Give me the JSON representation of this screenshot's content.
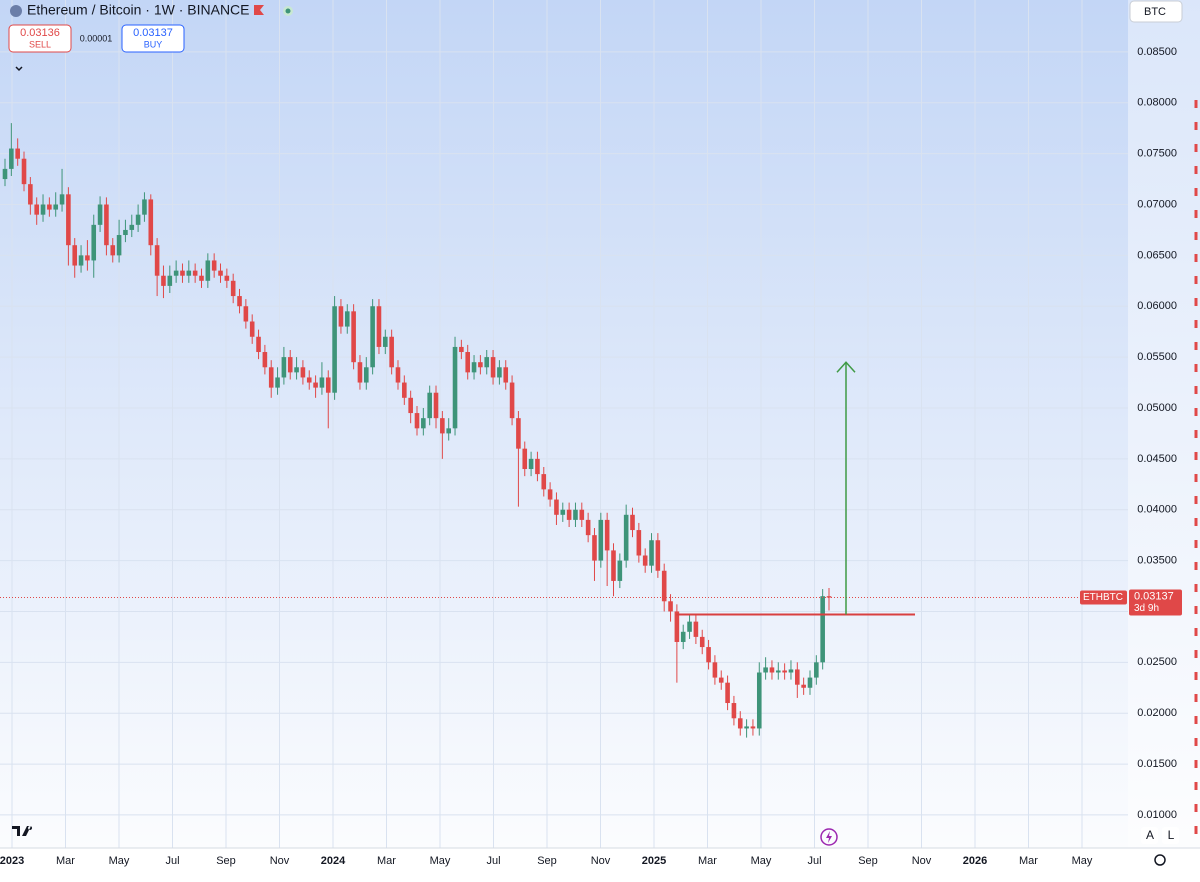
{
  "toolbar": {
    "title": "Ethereum / Bitcoin · 1W · BINANCE",
    "sell": {
      "price": "0.03136",
      "label": "SELL"
    },
    "spread": "0.00001",
    "buy": {
      "price": "0.03137",
      "label": "BUY"
    },
    "currency": "BTC",
    "scale_buttons": [
      "A",
      "L"
    ],
    "countdown": "3d 9h",
    "symbol": "ETHBTC"
  },
  "chart_data": {
    "type": "candlestick",
    "up_color": "#3e9479",
    "down_color": "#e04848",
    "ylim": [
      0.00675,
      0.0901
    ],
    "yticks": [
      {
        "value": 0.01,
        "label": "0.01000"
      },
      {
        "value": 0.015,
        "label": "0.01500"
      },
      {
        "value": 0.02,
        "label": "0.02000"
      },
      {
        "value": 0.025,
        "label": "0.02500"
      },
      {
        "value": 0.03,
        "label": "0.03000"
      },
      {
        "value": 0.035,
        "label": "0.03500"
      },
      {
        "value": 0.04,
        "label": "0.04000"
      },
      {
        "value": 0.045,
        "label": "0.04500"
      },
      {
        "value": 0.05,
        "label": "0.05000"
      },
      {
        "value": 0.055,
        "label": "0.05500"
      },
      {
        "value": 0.06,
        "label": "0.06000"
      },
      {
        "value": 0.065,
        "label": "0.06500"
      },
      {
        "value": 0.07,
        "label": "0.07000"
      },
      {
        "value": 0.075,
        "label": "0.07500"
      },
      {
        "value": 0.08,
        "label": "0.08000"
      },
      {
        "value": 0.085,
        "label": "0.08500"
      }
    ],
    "xticks": [
      {
        "value": "2023-01",
        "label": "2023"
      },
      {
        "value": "2023-03",
        "label": "Mar"
      },
      {
        "value": "2023-05",
        "label": "May"
      },
      {
        "value": "2023-07",
        "label": "Jul"
      },
      {
        "value": "2023-09",
        "label": "Sep"
      },
      {
        "value": "2023-11",
        "label": "Nov"
      },
      {
        "value": "2024-01",
        "label": "2024"
      },
      {
        "value": "2024-03",
        "label": "Mar"
      },
      {
        "value": "2024-05",
        "label": "May"
      },
      {
        "value": "2024-07",
        "label": "Jul"
      },
      {
        "value": "2024-09",
        "label": "Sep"
      },
      {
        "value": "2024-11",
        "label": "Nov"
      },
      {
        "value": "2025-01",
        "label": "2025"
      },
      {
        "value": "2025-03",
        "label": "Mar"
      },
      {
        "value": "2025-05",
        "label": "May"
      },
      {
        "value": "2025-07",
        "label": "Jul"
      },
      {
        "value": "2025-09",
        "label": "Sep"
      },
      {
        "value": "2025-11",
        "label": "Nov"
      },
      {
        "value": "2026-01",
        "label": "2026"
      },
      {
        "value": "2026-03",
        "label": "Mar"
      },
      {
        "value": "2026-05",
        "label": "May"
      }
    ],
    "open": [
      0.0725,
      0.0735,
      0.0755,
      0.0745,
      0.072,
      0.07,
      0.069,
      0.07,
      0.0695,
      0.07,
      0.071,
      0.066,
      0.064,
      0.065,
      0.0645,
      0.068,
      0.07,
      0.066,
      0.065,
      0.067,
      0.0675,
      0.068,
      0.069,
      0.0705,
      0.066,
      0.063,
      0.062,
      0.063,
      0.0635,
      0.063,
      0.0635,
      0.063,
      0.0625,
      0.0645,
      0.0635,
      0.063,
      0.0625,
      0.061,
      0.06,
      0.0585,
      0.057,
      0.0555,
      0.054,
      0.052,
      0.053,
      0.055,
      0.0535,
      0.054,
      0.053,
      0.0525,
      0.052,
      0.053,
      0.0515,
      0.06,
      0.058,
      0.0595,
      0.0545,
      0.0525,
      0.054,
      0.06,
      0.056,
      0.057,
      0.054,
      0.0525,
      0.051,
      0.0495,
      0.048,
      0.049,
      0.0515,
      0.049,
      0.0475,
      0.048,
      0.056,
      0.0555,
      0.0535,
      0.0545,
      0.054,
      0.055,
      0.053,
      0.054,
      0.0525,
      0.049,
      0.046,
      0.044,
      0.045,
      0.0435,
      0.042,
      0.041,
      0.0395,
      0.04,
      0.039,
      0.04,
      0.039,
      0.0375,
      0.035,
      0.039,
      0.036,
      0.033,
      0.035,
      0.0395,
      0.038,
      0.0355,
      0.0345,
      0.037,
      0.034,
      0.031,
      0.03,
      0.027,
      0.028,
      0.029,
      0.0275,
      0.0265,
      0.025,
      0.0235,
      0.023,
      0.021,
      0.0195,
      0.0185,
      0.0187,
      0.0185,
      0.024,
      0.0245,
      0.024,
      0.0242,
      0.024,
      0.0243,
      0.0228,
      0.0225,
      0.0235,
      0.025,
      0.0315
    ],
    "high": [
      0.0745,
      0.078,
      0.0765,
      0.0752,
      0.0727,
      0.0707,
      0.071,
      0.0707,
      0.0712,
      0.0735,
      0.0717,
      0.0667,
      0.066,
      0.0665,
      0.069,
      0.0708,
      0.0707,
      0.0667,
      0.0685,
      0.0685,
      0.069,
      0.07,
      0.0712,
      0.071,
      0.0667,
      0.064,
      0.064,
      0.0645,
      0.0642,
      0.0645,
      0.0642,
      0.0637,
      0.0652,
      0.0652,
      0.0642,
      0.0637,
      0.0632,
      0.0617,
      0.0607,
      0.0592,
      0.0577,
      0.0562,
      0.0547,
      0.054,
      0.056,
      0.0557,
      0.055,
      0.0547,
      0.0537,
      0.0532,
      0.0545,
      0.0537,
      0.061,
      0.0607,
      0.0602,
      0.0602,
      0.0552,
      0.055,
      0.0607,
      0.0607,
      0.0577,
      0.0577,
      0.0547,
      0.0532,
      0.0517,
      0.0502,
      0.05,
      0.0522,
      0.0522,
      0.0497,
      0.049,
      0.057,
      0.0567,
      0.0562,
      0.0552,
      0.0552,
      0.0557,
      0.0557,
      0.0547,
      0.0547,
      0.0532,
      0.0497,
      0.0467,
      0.0457,
      0.0457,
      0.0442,
      0.0427,
      0.0417,
      0.0407,
      0.0407,
      0.0407,
      0.0407,
      0.0397,
      0.0382,
      0.0397,
      0.0397,
      0.0367,
      0.0357,
      0.0405,
      0.0402,
      0.0387,
      0.0362,
      0.0377,
      0.0377,
      0.0347,
      0.0317,
      0.0307,
      0.0287,
      0.0297,
      0.0297,
      0.0282,
      0.0272,
      0.0257,
      0.0242,
      0.0237,
      0.0217,
      0.0202,
      0.0194,
      0.0194,
      0.025,
      0.0255,
      0.0252,
      0.025,
      0.0249,
      0.0252,
      0.025,
      0.0235,
      0.0242,
      0.0257,
      0.0322,
      0.0323
    ],
    "low": [
      0.0718,
      0.0728,
      0.0738,
      0.0713,
      0.069,
      0.068,
      0.0683,
      0.0688,
      0.0688,
      0.0693,
      0.064,
      0.0628,
      0.0633,
      0.0635,
      0.0628,
      0.0673,
      0.065,
      0.0643,
      0.0643,
      0.0663,
      0.0668,
      0.0673,
      0.0683,
      0.065,
      0.061,
      0.0608,
      0.0613,
      0.0623,
      0.0623,
      0.0623,
      0.0623,
      0.0618,
      0.0618,
      0.0628,
      0.0623,
      0.0618,
      0.0603,
      0.0593,
      0.0578,
      0.0563,
      0.0548,
      0.0533,
      0.051,
      0.0513,
      0.0523,
      0.0528,
      0.0528,
      0.0523,
      0.0518,
      0.051,
      0.0513,
      0.048,
      0.0508,
      0.0573,
      0.0573,
      0.0538,
      0.0518,
      0.0518,
      0.0533,
      0.0553,
      0.0553,
      0.0533,
      0.0518,
      0.0503,
      0.0485,
      0.0473,
      0.0473,
      0.0483,
      0.048,
      0.045,
      0.0468,
      0.0473,
      0.0548,
      0.0528,
      0.0528,
      0.0533,
      0.0533,
      0.0523,
      0.0523,
      0.0518,
      0.0483,
      0.0403,
      0.0433,
      0.0433,
      0.0428,
      0.0413,
      0.0403,
      0.0385,
      0.0388,
      0.0383,
      0.0383,
      0.0383,
      0.0368,
      0.033,
      0.0343,
      0.0325,
      0.0315,
      0.0323,
      0.0343,
      0.0373,
      0.0348,
      0.0338,
      0.0338,
      0.0333,
      0.03,
      0.029,
      0.023,
      0.0263,
      0.0273,
      0.0268,
      0.0258,
      0.0243,
      0.0228,
      0.0223,
      0.0203,
      0.0188,
      0.0178,
      0.0176,
      0.0178,
      0.0178,
      0.0233,
      0.0233,
      0.0233,
      0.0233,
      0.0233,
      0.0215,
      0.0218,
      0.0218,
      0.0228,
      0.0243,
      0.0301
    ],
    "close": [
      0.0735,
      0.0755,
      0.0745,
      0.072,
      0.07,
      0.069,
      0.07,
      0.0695,
      0.07,
      0.071,
      0.066,
      0.064,
      0.065,
      0.0645,
      0.068,
      0.07,
      0.066,
      0.065,
      0.067,
      0.0675,
      0.068,
      0.069,
      0.0705,
      0.066,
      0.063,
      0.062,
      0.063,
      0.0635,
      0.063,
      0.0635,
      0.063,
      0.0625,
      0.0645,
      0.0635,
      0.063,
      0.0625,
      0.061,
      0.06,
      0.0585,
      0.057,
      0.0555,
      0.054,
      0.052,
      0.053,
      0.055,
      0.0535,
      0.054,
      0.053,
      0.0525,
      0.052,
      0.053,
      0.0515,
      0.06,
      0.058,
      0.0595,
      0.0545,
      0.0525,
      0.054,
      0.06,
      0.056,
      0.057,
      0.054,
      0.0525,
      0.051,
      0.0495,
      0.048,
      0.049,
      0.0515,
      0.049,
      0.0475,
      0.048,
      0.056,
      0.0555,
      0.0535,
      0.0545,
      0.054,
      0.055,
      0.053,
      0.054,
      0.0525,
      0.049,
      0.046,
      0.044,
      0.045,
      0.0435,
      0.042,
      0.041,
      0.0395,
      0.04,
      0.039,
      0.04,
      0.039,
      0.0375,
      0.035,
      0.039,
      0.036,
      0.033,
      0.035,
      0.0395,
      0.038,
      0.0355,
      0.0345,
      0.037,
      0.034,
      0.031,
      0.03,
      0.027,
      0.028,
      0.029,
      0.0275,
      0.0265,
      0.025,
      0.0235,
      0.023,
      0.021,
      0.0195,
      0.0185,
      0.0187,
      0.0185,
      0.024,
      0.0245,
      0.024,
      0.0242,
      0.024,
      0.0243,
      0.0228,
      0.0225,
      0.0235,
      0.025,
      0.0315,
      0.03137
    ],
    "level_line": 0.0297,
    "target_arrow": [
      0.0297,
      0.0545
    ],
    "level_color": "#d94040",
    "arrow_color": "#3f9a45",
    "grid": true
  }
}
